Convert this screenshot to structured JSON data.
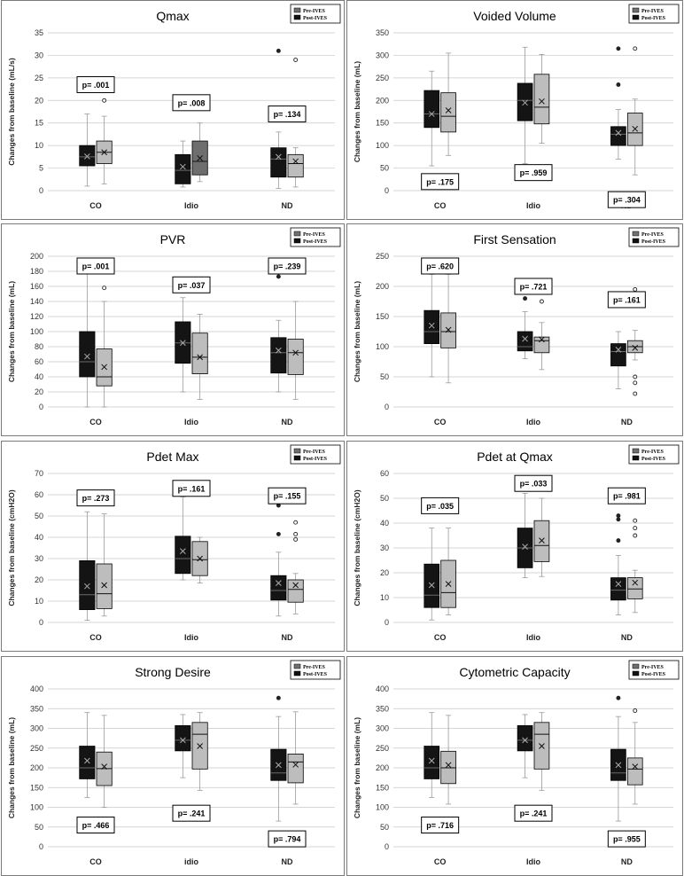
{
  "legend": {
    "pre": "Pre-IVES",
    "post": "Post-IVES"
  },
  "colors": {
    "pre": "#141414",
    "post": "#bdbdbd",
    "idio_post_qmax": "#6e6e6e",
    "grid": "#c8c8c8"
  },
  "chart_data": [
    {
      "type": "box",
      "title": "Qmax",
      "ylabel": "Changes from baseline (mL/s)",
      "categories": [
        "CO",
        "Idio",
        "ND"
      ],
      "ylim": [
        0,
        35
      ],
      "ystep": 5,
      "series": [
        {
          "name": "Pre-IVES",
          "boxes": [
            {
              "min": 1,
              "q1": 5.5,
              "median": 7.5,
              "q3": 10,
              "max": 17,
              "mean": 7.6,
              "outliers": []
            },
            {
              "min": 0.8,
              "q1": 1.5,
              "median": 4.5,
              "q3": 8,
              "max": 11,
              "mean": 5.3,
              "outliers": []
            },
            {
              "min": 0.5,
              "q1": 3,
              "median": 7,
              "q3": 9.5,
              "max": 13,
              "mean": 7.5,
              "outliers": [
                31
              ]
            }
          ]
        },
        {
          "name": "Post-IVES",
          "boxes": [
            {
              "min": 1.5,
              "q1": 6,
              "median": 8.5,
              "q3": 11,
              "max": 16.5,
              "mean": 8.5,
              "outliers": [
                20
              ]
            },
            {
              "min": 2,
              "q1": 3.5,
              "median": 6.5,
              "q3": 11,
              "max": 15,
              "mean": 7.2,
              "outliers": []
            },
            {
              "min": 0.8,
              "q1": 3,
              "median": 6,
              "q3": 8,
              "max": 9.5,
              "mean": 6.5,
              "outliers": [
                29
              ]
            }
          ]
        }
      ],
      "pvalues": [
        {
          "label": "p= .001",
          "y": 23.5
        },
        {
          "label": "p= .008",
          "y": 19.5
        },
        {
          "label": "p= .134",
          "y": 17
        }
      ]
    },
    {
      "type": "box",
      "title": "Voided Volume",
      "ylabel": "Changes from baseline (mL)",
      "categories": [
        "CO",
        "Idio",
        "ND"
      ],
      "ylim": [
        0,
        350
      ],
      "ystep": 50,
      "series": [
        {
          "name": "Pre-IVES",
          "boxes": [
            {
              "min": 55,
              "q1": 140,
              "median": 170,
              "q3": 222,
              "max": 265,
              "mean": 170,
              "outliers": []
            },
            {
              "min": 60,
              "q1": 155,
              "median": 200,
              "q3": 238,
              "max": 318,
              "mean": 195,
              "outliers": []
            },
            {
              "min": 70,
              "q1": 100,
              "median": 125,
              "q3": 142,
              "max": 180,
              "mean": 128,
              "outliers": [
                235,
                315
              ]
            }
          ]
        },
        {
          "name": "Post-IVES",
          "boxes": [
            {
              "min": 78,
              "q1": 130,
              "median": 165,
              "q3": 217,
              "max": 305,
              "mean": 178,
              "outliers": []
            },
            {
              "min": 105,
              "q1": 148,
              "median": 185,
              "q3": 258,
              "max": 302,
              "mean": 198,
              "outliers": []
            },
            {
              "min": 35,
              "q1": 100,
              "median": 128,
              "q3": 172,
              "max": 203,
              "mean": 137,
              "outliers": [
                315
              ]
            }
          ]
        }
      ],
      "pvalues": [
        {
          "label": "p= .175",
          "y": 20
        },
        {
          "label": "p= .959",
          "y": 40
        },
        {
          "label": "p= .304",
          "y": -20
        }
      ]
    },
    {
      "type": "box",
      "title": "PVR",
      "ylabel": "Changes from baseline (mL)",
      "categories": [
        "CO",
        "Idio",
        "ND"
      ],
      "ylim": [
        0,
        200
      ],
      "ystep": 20,
      "series": [
        {
          "name": "Pre-IVES",
          "boxes": [
            {
              "min": 0,
              "q1": 40,
              "median": 60,
              "q3": 100,
              "max": 180,
              "mean": 67,
              "outliers": []
            },
            {
              "min": 20,
              "q1": 58,
              "median": 85,
              "q3": 113,
              "max": 145,
              "mean": 85,
              "outliers": []
            },
            {
              "min": 20,
              "q1": 45,
              "median": 72,
              "q3": 92,
              "max": 115,
              "mean": 75,
              "outliers": [
                173
              ]
            }
          ]
        },
        {
          "name": "Post-IVES",
          "boxes": [
            {
              "min": 0,
              "q1": 28,
              "median": 40,
              "q3": 77,
              "max": 140,
              "mean": 53,
              "outliers": [
                158
              ]
            },
            {
              "min": 10,
              "q1": 44,
              "median": 66,
              "q3": 98,
              "max": 123,
              "mean": 66,
              "outliers": []
            },
            {
              "min": 10,
              "q1": 43,
              "median": 72,
              "q3": 90,
              "max": 140,
              "mean": 72,
              "outliers": []
            }
          ]
        }
      ],
      "pvalues": [
        {
          "label": "p= .001",
          "y": 191
        },
        {
          "label": "p= .037",
          "y": 162
        },
        {
          "label": "p= .239",
          "y": 191
        }
      ]
    },
    {
      "type": "box",
      "title": "First Sensation",
      "ylabel": "Changes from baseline (mL)",
      "categories": [
        "CO",
        "Idio",
        "ND"
      ],
      "ylim": [
        0,
        250
      ],
      "ystep": 50,
      "series": [
        {
          "name": "Pre-IVES",
          "boxes": [
            {
              "min": 50,
              "q1": 105,
              "median": 125,
              "q3": 160,
              "max": 220,
              "mean": 135,
              "outliers": []
            },
            {
              "min": 80,
              "q1": 93,
              "median": 100,
              "q3": 125,
              "max": 158,
              "mean": 113,
              "outliers": [
                180
              ]
            },
            {
              "min": 30,
              "q1": 68,
              "median": 92,
              "q3": 105,
              "max": 125,
              "mean": 95,
              "outliers": [
                176
              ]
            }
          ]
        },
        {
          "name": "Post-IVES",
          "boxes": [
            {
              "min": 40,
              "q1": 98,
              "median": 125,
              "q3": 156,
              "max": 220,
              "mean": 128,
              "outliers": []
            },
            {
              "min": 62,
              "q1": 90,
              "median": 110,
              "q3": 116,
              "max": 140,
              "mean": 112,
              "outliers": [
                175
              ]
            },
            {
              "min": 78,
              "q1": 90,
              "median": 100,
              "q3": 110,
              "max": 127,
              "mean": 98,
              "outliers": [
                195,
                50,
                40,
                22
              ]
            }
          ]
        }
      ],
      "pvalues": [
        {
          "label": "p= .620",
          "y": 235
        },
        {
          "label": "p= .721",
          "y": 200
        },
        {
          "label": "p= .161",
          "y": 178
        }
      ]
    },
    {
      "type": "box",
      "title": "Pdet Max",
      "ylabel": "Changes from baseline (cmH2O)",
      "categories": [
        "CO",
        "Idio",
        "ND"
      ],
      "ylim": [
        0,
        70
      ],
      "ystep": 10,
      "series": [
        {
          "name": "Pre-IVES",
          "boxes": [
            {
              "min": 1,
              "q1": 6,
              "median": 13,
              "q3": 29,
              "max": 52,
              "mean": 17,
              "outliers": []
            },
            {
              "min": 20,
              "q1": 23,
              "median": 30,
              "q3": 40.5,
              "max": 59,
              "mean": 33.5,
              "outliers": []
            },
            {
              "min": 3,
              "q1": 10.5,
              "median": 15,
              "q3": 22,
              "max": 33,
              "mean": 18.5,
              "outliers": [
                41.5,
                55
              ]
            }
          ]
        },
        {
          "name": "Post-IVES",
          "boxes": [
            {
              "min": 3,
              "q1": 6.5,
              "median": 13.5,
              "q3": 27.5,
              "max": 51,
              "mean": 17.5,
              "outliers": []
            },
            {
              "min": 18.5,
              "q1": 22,
              "median": 29.5,
              "q3": 38,
              "max": 40,
              "mean": 30,
              "outliers": []
            },
            {
              "min": 4,
              "q1": 9.5,
              "median": 15.5,
              "q3": 20,
              "max": 23,
              "mean": 17.5,
              "outliers": [
                39,
                41.5,
                47
              ]
            }
          ]
        }
      ],
      "pvalues": [
        {
          "label": "p= .273",
          "y": 58.5
        },
        {
          "label": "p= .161",
          "y": 63
        },
        {
          "label": "p= .155",
          "y": 59.5
        }
      ]
    },
    {
      "type": "box",
      "title": "Pdet at Qmax",
      "ylabel": "Changes from baseline (cmH2O)",
      "categories": [
        "CO",
        "Idio",
        "ND"
      ],
      "ylim": [
        0,
        60
      ],
      "ystep": 10,
      "series": [
        {
          "name": "Pre-IVES",
          "boxes": [
            {
              "min": 1,
              "q1": 6,
              "median": 11,
              "q3": 23.5,
              "max": 38,
              "mean": 15,
              "outliers": []
            },
            {
              "min": 18,
              "q1": 22,
              "median": 30,
              "q3": 38,
              "max": 52,
              "mean": 30.5,
              "outliers": []
            },
            {
              "min": 3,
              "q1": 9,
              "median": 13,
              "q3": 18,
              "max": 27,
              "mean": 15.5,
              "outliers": [
                33,
                41.5,
                43
              ]
            }
          ]
        },
        {
          "name": "Post-IVES",
          "boxes": [
            {
              "min": 3,
              "q1": 6,
              "median": 12,
              "q3": 25,
              "max": 38,
              "mean": 15.5,
              "outliers": []
            },
            {
              "min": 18.5,
              "q1": 24.5,
              "median": 31,
              "q3": 41,
              "max": 50,
              "mean": 33,
              "outliers": []
            },
            {
              "min": 4,
              "q1": 9.5,
              "median": 13.5,
              "q3": 18,
              "max": 21,
              "mean": 16,
              "outliers": [
                35,
                38,
                41
              ]
            }
          ]
        }
      ],
      "pvalues": [
        {
          "label": "p= .035",
          "y": 47
        },
        {
          "label": "p= .033",
          "y": 56
        },
        {
          "label": "p= .981",
          "y": 51
        }
      ]
    },
    {
      "type": "box",
      "title": "Strong Desire",
      "ylabel": "Changes from baseline (mL)",
      "categories": [
        "CO",
        "idio",
        "ND"
      ],
      "ylim": [
        0,
        400
      ],
      "ystep": 50,
      "series": [
        {
          "name": "Pre-IVES",
          "boxes": [
            {
              "min": 125,
              "q1": 172,
              "median": 200,
              "q3": 255,
              "max": 340,
              "mean": 218,
              "outliers": []
            },
            {
              "min": 175,
              "q1": 243,
              "median": 270,
              "q3": 307,
              "max": 335,
              "mean": 270,
              "outliers": []
            },
            {
              "min": 65,
              "q1": 168,
              "median": 187,
              "q3": 247,
              "max": 330,
              "mean": 207,
              "outliers": [
                377
              ]
            }
          ]
        },
        {
          "name": "Post-IVES",
          "boxes": [
            {
              "min": 100,
              "q1": 155,
              "median": 198,
              "q3": 240,
              "max": 333,
              "mean": 203,
              "outliers": []
            },
            {
              "min": 143,
              "q1": 197,
              "median": 285,
              "q3": 315,
              "max": 340,
              "mean": 255,
              "outliers": []
            },
            {
              "min": 108,
              "q1": 162,
              "median": 215,
              "q3": 235,
              "max": 342,
              "mean": 208,
              "outliers": []
            }
          ]
        }
      ],
      "pvalues": [
        {
          "label": "p= .466",
          "y": 55
        },
        {
          "label": "p= .241",
          "y": 85
        },
        {
          "label": "p= .794",
          "y": 20
        }
      ]
    },
    {
      "type": "box",
      "title": "Cytometric Capacity",
      "ylabel": "Changes from baseline (mL)",
      "categories": [
        "CO",
        "Idio",
        "ND"
      ],
      "ylim": [
        0,
        400
      ],
      "ystep": 50,
      "series": [
        {
          "name": "Pre-IVES",
          "boxes": [
            {
              "min": 125,
              "q1": 172,
              "median": 200,
              "q3": 255,
              "max": 340,
              "mean": 218,
              "outliers": []
            },
            {
              "min": 175,
              "q1": 243,
              "median": 270,
              "q3": 307,
              "max": 335,
              "mean": 270,
              "outliers": []
            },
            {
              "min": 65,
              "q1": 168,
              "median": 187,
              "q3": 247,
              "max": 330,
              "mean": 207,
              "outliers": [
                377
              ]
            }
          ]
        },
        {
          "name": "Post-IVES",
          "boxes": [
            {
              "min": 108,
              "q1": 160,
              "median": 200,
              "q3": 242,
              "max": 333,
              "mean": 207,
              "outliers": []
            },
            {
              "min": 143,
              "q1": 197,
              "median": 285,
              "q3": 315,
              "max": 340,
              "mean": 255,
              "outliers": []
            },
            {
              "min": 108,
              "q1": 157,
              "median": 197,
              "q3": 225,
              "max": 315,
              "mean": 203,
              "outliers": [
                345
              ]
            }
          ]
        }
      ],
      "pvalues": [
        {
          "label": "p= .716",
          "y": 55
        },
        {
          "label": "p= .241",
          "y": 85
        },
        {
          "label": "p= .955",
          "y": 20
        }
      ]
    }
  ]
}
